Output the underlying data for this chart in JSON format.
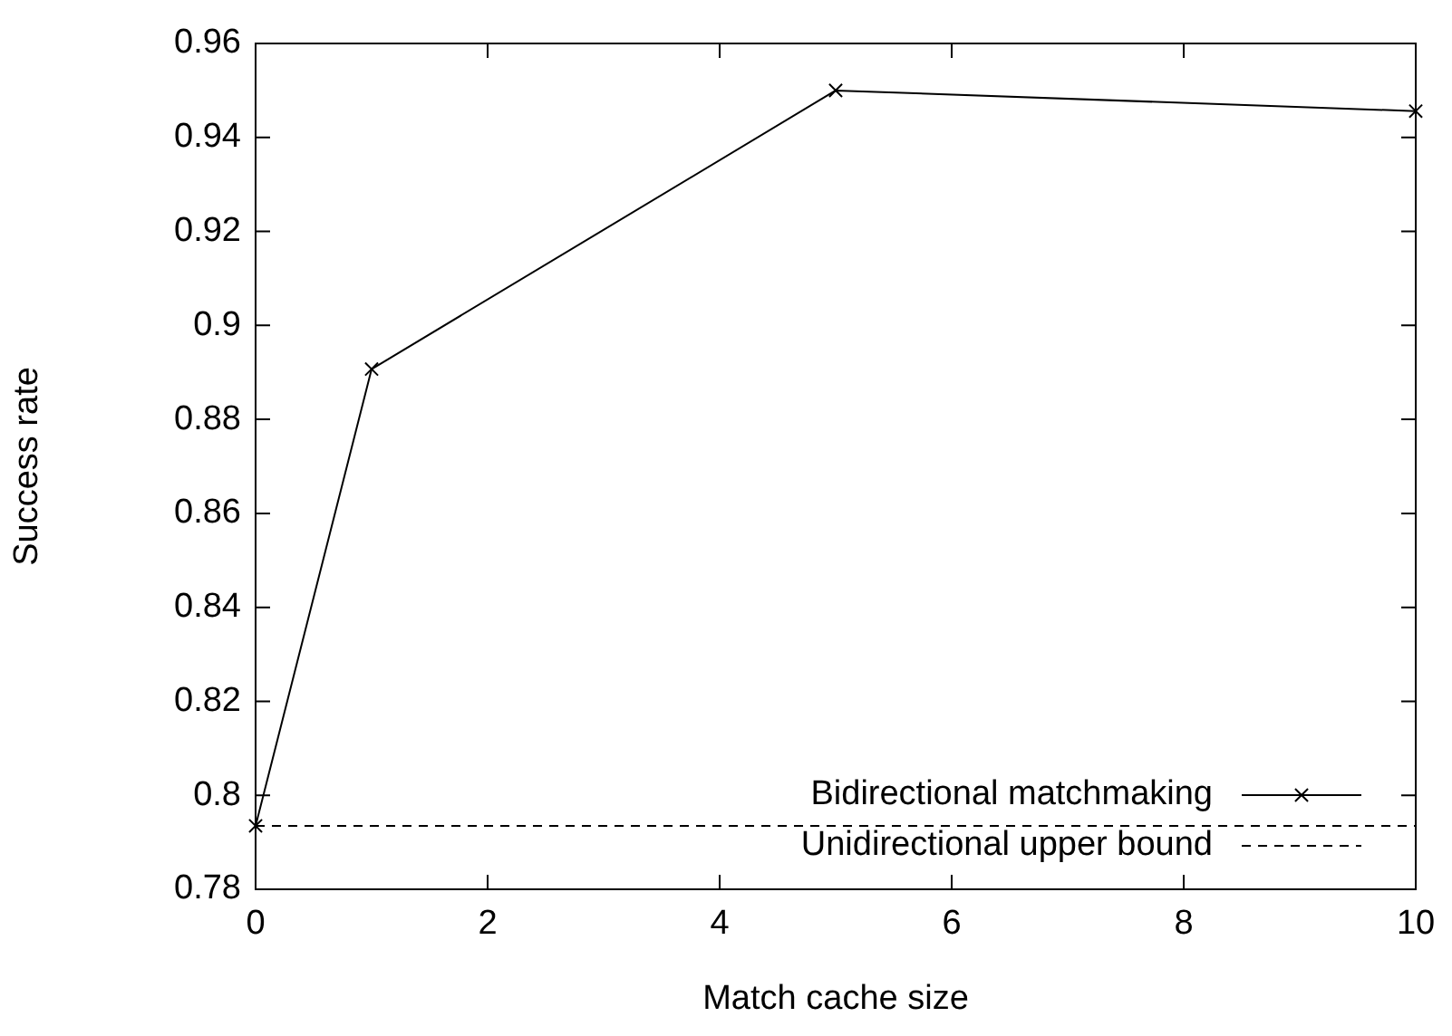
{
  "chart_data": {
    "type": "line",
    "xlabel": "Match cache size",
    "ylabel": "Success rate",
    "x": [
      0,
      1,
      5,
      10
    ],
    "series": [
      {
        "name": "Bidirectional matchmaking",
        "color": "#000000",
        "values": [
          0.7935,
          0.8907,
          0.95,
          0.9456
        ],
        "marker": "cross",
        "line_style": "solid"
      },
      {
        "name": "Unidirectional upper bound",
        "color": "#000000",
        "x": [
          0,
          10
        ],
        "values": [
          0.7935,
          0.7935
        ],
        "marker": "none",
        "line_style": "dashed"
      }
    ],
    "xlim": [
      0,
      10
    ],
    "xticks": [
      0,
      2,
      4,
      6,
      8,
      10
    ],
    "ylim": [
      0.78,
      0.96
    ],
    "yticks": [
      0.78,
      0.8,
      0.82,
      0.84,
      0.86,
      0.88,
      0.9,
      0.92,
      0.94,
      0.96
    ],
    "grid": false,
    "legend": "bottom right"
  }
}
